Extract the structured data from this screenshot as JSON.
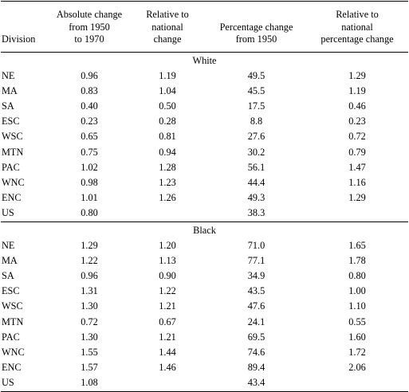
{
  "headers": {
    "division": "Division",
    "absolute_change": [
      "Absolute change",
      "from 1950",
      "to 1970"
    ],
    "relative_national": [
      "Relative to",
      "national",
      "change"
    ],
    "percentage_change": [
      "Percentage change",
      "from 1950"
    ],
    "relative_percentage": [
      "Relative to",
      "national",
      "percentage change"
    ]
  },
  "sections": [
    {
      "label": "White",
      "rows": [
        [
          "NE",
          "0.96",
          "1.19",
          "49.5",
          "1.29"
        ],
        [
          "MA",
          "0.83",
          "1.04",
          "45.5",
          "1.19"
        ],
        [
          "SA",
          "0.40",
          "0.50",
          "17.5",
          "0.46"
        ],
        [
          "ESC",
          "0.23",
          "0.28",
          "8.8",
          "0.23"
        ],
        [
          "WSC",
          "0.65",
          "0.81",
          "27.6",
          "0.72"
        ],
        [
          "MTN",
          "0.75",
          "0.94",
          "30.2",
          "0.79"
        ],
        [
          "PAC",
          "1.02",
          "1.28",
          "56.1",
          "1.47"
        ],
        [
          "WNC",
          "0.98",
          "1.23",
          "44.4",
          "1.16"
        ],
        [
          "ENC",
          "1.01",
          "1.26",
          "49.3",
          "1.29"
        ],
        [
          "US",
          "0.80",
          "",
          "38.3",
          ""
        ]
      ]
    },
    {
      "label": "Black",
      "rows": [
        [
          "NE",
          "1.29",
          "1.20",
          "71.0",
          "1.65"
        ],
        [
          "MA",
          "1.22",
          "1.13",
          "77.1",
          "1.78"
        ],
        [
          "SA",
          "0.96",
          "0.90",
          "34.9",
          "0.80"
        ],
        [
          "ESC",
          "1.31",
          "1.22",
          "43.5",
          "1.00"
        ],
        [
          "WSC",
          "1.30",
          "1.21",
          "47.6",
          "1.10"
        ],
        [
          "MTN",
          "0.72",
          "0.67",
          "24.1",
          "0.55"
        ],
        [
          "PAC",
          "1.30",
          "1.21",
          "69.5",
          "1.60"
        ],
        [
          "WNC",
          "1.55",
          "1.44",
          "74.6",
          "1.72"
        ],
        [
          "ENC",
          "1.57",
          "1.46",
          "89.4",
          "2.06"
        ],
        [
          "US",
          "1.08",
          "",
          "43.4",
          ""
        ]
      ]
    }
  ]
}
